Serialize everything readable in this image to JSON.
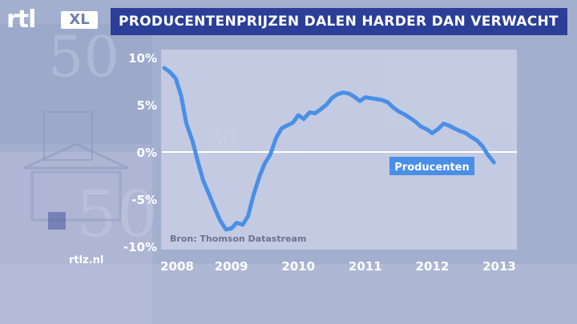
{
  "brand": {
    "logo_rtl": "rtl",
    "logo_xl": "XL",
    "site": "rtlz.nl"
  },
  "header": {
    "title": "PRODUCENTENPRIJZEN DALEN HARDER DAN VERWACHT"
  },
  "colors": {
    "title_bar": "#2b3f98",
    "line": "#4a8fe6",
    "series_label_bg": "#4a8fe6"
  },
  "chart_data": {
    "type": "line",
    "title": "PRODUCENTENPRIJZEN DALEN HARDER DAN VERWACHT",
    "xlabel": "",
    "ylabel": "",
    "xlim": [
      2008,
      2013
    ],
    "ylim": [
      -10,
      10
    ],
    "x_ticks": [
      2008,
      2009,
      2010,
      2011,
      2012,
      2013
    ],
    "x_tick_labels": [
      "2008",
      "2009",
      "2010",
      "2011",
      "2012",
      "2013"
    ],
    "y_ticks": [
      10,
      5,
      0,
      -5,
      -10
    ],
    "y_tick_labels": [
      "10%",
      "5%",
      "0%",
      "-5%",
      "-10%"
    ],
    "zero_line": true,
    "grid": false,
    "series": [
      {
        "name": "Producenten",
        "x": [
          2008.0,
          2008.08,
          2008.17,
          2008.25,
          2008.33,
          2008.42,
          2008.5,
          2008.58,
          2008.67,
          2008.75,
          2008.83,
          2008.92,
          2009.0,
          2009.08,
          2009.17,
          2009.25,
          2009.33,
          2009.42,
          2009.5,
          2009.58,
          2009.67,
          2009.75,
          2009.83,
          2009.92,
          2010.0,
          2010.08,
          2010.17,
          2010.25,
          2010.33,
          2010.42,
          2010.5,
          2010.58,
          2010.67,
          2010.75,
          2010.83,
          2010.92,
          2011.0,
          2011.08,
          2011.17,
          2011.25,
          2011.33,
          2011.42,
          2011.5,
          2011.58,
          2011.67,
          2011.75,
          2011.83,
          2011.92,
          2012.0,
          2012.08,
          2012.17,
          2012.25,
          2012.33,
          2012.42,
          2012.5,
          2012.58,
          2012.67,
          2012.75,
          2012.83,
          2012.92
        ],
        "values": [
          8.9,
          8.5,
          7.8,
          6.0,
          3.0,
          1.2,
          -1.0,
          -3.0,
          -4.5,
          -5.9,
          -7.2,
          -8.2,
          -8.1,
          -7.5,
          -7.7,
          -6.8,
          -4.6,
          -2.6,
          -1.2,
          -0.3,
          1.5,
          2.5,
          2.8,
          3.1,
          3.9,
          3.5,
          4.2,
          4.1,
          4.5,
          5.0,
          5.7,
          6.1,
          6.3,
          6.2,
          5.9,
          5.4,
          5.8,
          5.7,
          5.6,
          5.5,
          5.3,
          4.7,
          4.3,
          4.0,
          3.6,
          3.2,
          2.7,
          2.4,
          2.0,
          2.4,
          3.0,
          2.8,
          2.5,
          2.2,
          2.0,
          1.6,
          1.2,
          0.6,
          -0.3,
          -1.1
        ]
      }
    ],
    "series_label": "Producenten",
    "source": "Bron: Thomson Datastream"
  }
}
